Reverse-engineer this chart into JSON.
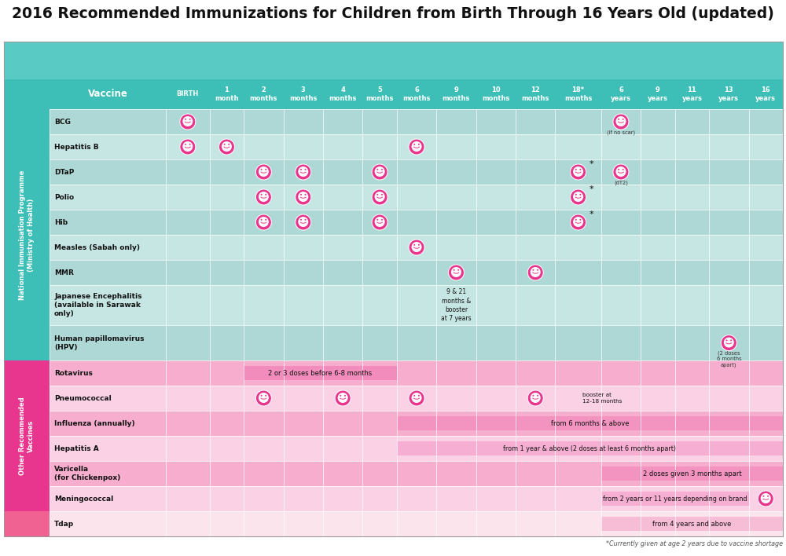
{
  "title": "2016 Recommended Immunizations for Children from Birth Through 16 Years Old (updated)",
  "title_fontsize": 13.5,
  "title_color": "#111111",
  "bg_color": "#ffffff",
  "teal_header": "#3dbfb8",
  "teal_icon_bg": "#5acac4",
  "light_teal1": "#aed8d5",
  "light_teal2": "#c5e6e3",
  "pink_header": "#e8368f",
  "light_pink1": "#f7aece",
  "light_pink2": "#fad1e5",
  "light_pink_tdap": "#fce4ec",
  "pink_tdap_sidebar": "#f06292",
  "columns": [
    "BIRTH",
    "1\nmonth",
    "2\nmonths",
    "3\nmonths",
    "4\nmonths",
    "5\nmonths",
    "6\nmonths",
    "9\nmonths",
    "10\nmonths",
    "12\nmonths",
    "18*\nmonths",
    "6\nyears",
    "9\nyears",
    "11\nyears",
    "13\nyears",
    "16\nyears"
  ],
  "col_weights": [
    1.05,
    0.82,
    0.95,
    0.95,
    0.95,
    0.82,
    0.95,
    0.95,
    0.95,
    0.95,
    1.1,
    0.95,
    0.82,
    0.82,
    0.95,
    0.82
  ],
  "national_vaccines": [
    "BCG",
    "Hepatitis B",
    "DTaP",
    "Polio",
    "Hib",
    "Measles (Sabah only)",
    "MMR",
    "Japanese Encephalitis\n(available in Sarawak\nonly)",
    "Human papillomavirus\n(HPV)"
  ],
  "nat_row_h_factors": [
    1.0,
    1.0,
    1.0,
    1.0,
    1.0,
    1.0,
    1.0,
    1.6,
    1.4
  ],
  "other_vaccines": [
    "Rotavirus",
    "Pneumococcal",
    "Influenza (annually)",
    "Hepatitis A",
    "Varicella\n(for Chickenpox)",
    "Meningococcal"
  ],
  "tdap_vaccine": "Tdap",
  "footnote": "*Currently given at age 2 years due to vaccine shortage"
}
